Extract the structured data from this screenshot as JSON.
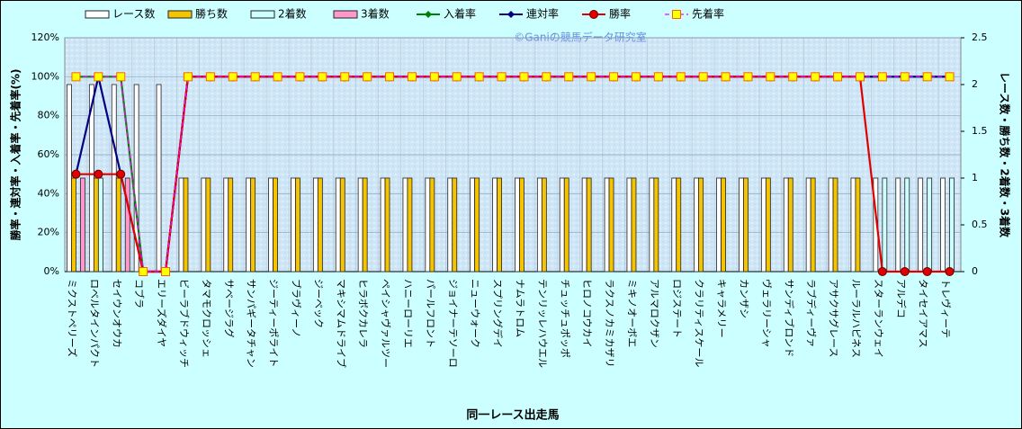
{
  "chart_data": {
    "type": "bar",
    "watermark": "©Ganiの競馬データ研究室",
    "x_label": "同一レース出走馬",
    "y_label": "勝率・連対率・入着率・先着率(%)",
    "y2_label": "レース数・勝ち数・2着数・3着数",
    "categories": [
      "ミクストペリーズ",
      "ロベルタインパクト",
      "セイウンオウカ",
      "コブラ",
      "エリーズダイヤ",
      "ビーラブドウィッチ",
      "タマモクロッシェ",
      "サベージラグ",
      "サンパギータチャン",
      "ジーティーポライト",
      "ブラヴィーノ",
      "ジーベック",
      "マキシマムドライブ",
      "ヒラボクカレラ",
      "ペイシャヴァルツー",
      "ハニーローリエ",
      "パールフロント",
      "ジョイナーテソーロ",
      "ニューウォーク",
      "スプリングデイ",
      "ナムラトロム",
      "テンリッレハウエル",
      "チュッチュポッポ",
      "ヒロノコウカイ",
      "ラクスノカミカザリ",
      "ミキノオーボエ",
      "アルマロクザン",
      "ロジステート",
      "クラリティスケール",
      "キャラメリー",
      "カンザシ",
      "ヴェラリーシャ",
      "サンディブロンド",
      "ラブディーヴァ",
      "アサクサグレース",
      "ルーラルハピネス",
      "スターランウェイ",
      "アルデコ",
      "タイセイアマス",
      "トレヴィーテ"
    ],
    "ylim": [
      0,
      120
    ],
    "yticks": [
      {
        "value": 0,
        "label": "0%"
      },
      {
        "value": 20,
        "label": "20%"
      },
      {
        "value": 40,
        "label": "40%"
      },
      {
        "value": 60,
        "label": "60%"
      },
      {
        "value": 80,
        "label": "80%"
      },
      {
        "value": 100,
        "label": "100%"
      },
      {
        "value": 120,
        "label": "120%"
      }
    ],
    "y2lim": [
      0,
      2.5
    ],
    "y2ticks": [
      0,
      0.5,
      1,
      1.5,
      2,
      2.5
    ],
    "grid": true,
    "series": [
      {
        "name": "レース数",
        "type": "bar",
        "axis": "y2",
        "color": "#ffffff",
        "values": [
          2,
          2,
          2,
          2,
          2,
          1,
          1,
          1,
          1,
          1,
          1,
          1,
          1,
          1,
          1,
          1,
          1,
          1,
          1,
          1,
          1,
          1,
          1,
          1,
          1,
          1,
          1,
          1,
          1,
          1,
          1,
          1,
          1,
          1,
          1,
          1,
          1,
          1,
          1,
          1
        ]
      },
      {
        "name": "勝ち数",
        "type": "bar",
        "axis": "y2",
        "color": "#f5c400",
        "values": [
          1,
          1,
          1,
          0,
          0,
          1,
          1,
          1,
          1,
          1,
          1,
          1,
          1,
          1,
          1,
          1,
          1,
          1,
          1,
          1,
          1,
          1,
          1,
          1,
          1,
          1,
          1,
          1,
          1,
          1,
          1,
          1,
          1,
          1,
          1,
          1,
          0,
          0,
          0,
          0
        ]
      },
      {
        "name": "2着数",
        "type": "bar",
        "axis": "y2",
        "color": "#ccffff",
        "values": [
          0,
          1,
          0,
          0,
          0,
          0,
          0,
          0,
          0,
          0,
          0,
          0,
          0,
          0,
          0,
          0,
          0,
          0,
          0,
          0,
          0,
          0,
          0,
          0,
          0,
          0,
          0,
          0,
          0,
          0,
          0,
          0,
          0,
          0,
          0,
          0,
          1,
          1,
          1,
          1
        ]
      },
      {
        "name": "3着数",
        "type": "bar",
        "axis": "y2",
        "color": "#ff99cc",
        "values": [
          1,
          0,
          1,
          0,
          0,
          0,
          0,
          0,
          0,
          0,
          0,
          0,
          0,
          0,
          0,
          0,
          0,
          0,
          0,
          0,
          0,
          0,
          0,
          0,
          0,
          0,
          0,
          0,
          0,
          0,
          0,
          0,
          0,
          0,
          0,
          0,
          0,
          0,
          0,
          0
        ]
      },
      {
        "name": "入着率",
        "type": "line",
        "color": "#008000",
        "marker": "diamond",
        "values": [
          100,
          100,
          100,
          0,
          0,
          100,
          100,
          100,
          100,
          100,
          100,
          100,
          100,
          100,
          100,
          100,
          100,
          100,
          100,
          100,
          100,
          100,
          100,
          100,
          100,
          100,
          100,
          100,
          100,
          100,
          100,
          100,
          100,
          100,
          100,
          100,
          100,
          100,
          100,
          100
        ]
      },
      {
        "name": "連対率",
        "type": "line",
        "color": "#000080",
        "marker": "diamond",
        "values": [
          50,
          100,
          50,
          0,
          0,
          100,
          100,
          100,
          100,
          100,
          100,
          100,
          100,
          100,
          100,
          100,
          100,
          100,
          100,
          100,
          100,
          100,
          100,
          100,
          100,
          100,
          100,
          100,
          100,
          100,
          100,
          100,
          100,
          100,
          100,
          100,
          100,
          100,
          100,
          100
        ]
      },
      {
        "name": "勝率",
        "type": "line",
        "color": "#e00000",
        "marker": "circle",
        "values": [
          50,
          50,
          50,
          0,
          0,
          100,
          100,
          100,
          100,
          100,
          100,
          100,
          100,
          100,
          100,
          100,
          100,
          100,
          100,
          100,
          100,
          100,
          100,
          100,
          100,
          100,
          100,
          100,
          100,
          100,
          100,
          100,
          100,
          100,
          100,
          100,
          0,
          0,
          0,
          0
        ]
      },
      {
        "name": "先着率",
        "type": "line",
        "color": "#ff00ff",
        "marker": "square",
        "dashed": true,
        "values": [
          100,
          100,
          100,
          0,
          0,
          100,
          100,
          100,
          100,
          100,
          100,
          100,
          100,
          100,
          100,
          100,
          100,
          100,
          100,
          100,
          100,
          100,
          100,
          100,
          100,
          100,
          100,
          100,
          100,
          100,
          100,
          100,
          100,
          100,
          100,
          100,
          100,
          100,
          100,
          100
        ]
      }
    ]
  }
}
